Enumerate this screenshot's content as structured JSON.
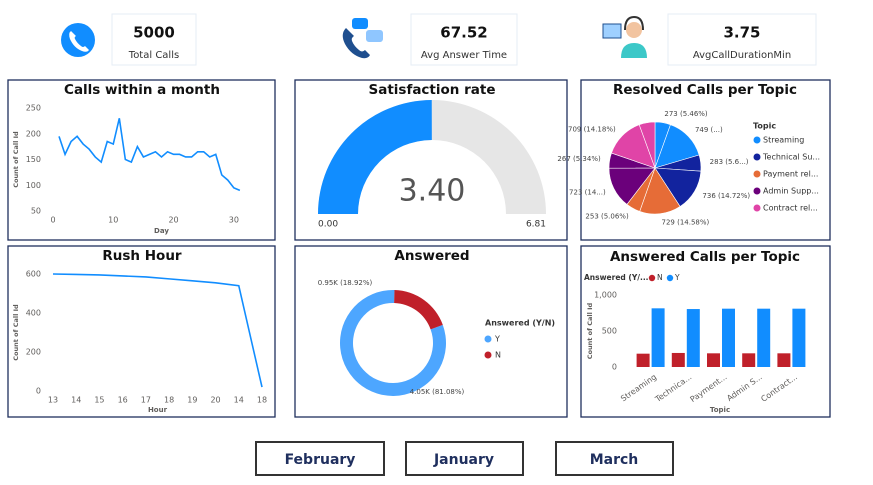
{
  "kpis": [
    {
      "value": 5000,
      "label": "Total Calls"
    },
    {
      "value": 67.52,
      "label": "Avg Answer Time"
    },
    {
      "value": 3.75,
      "label": "AvgCallDurationMin"
    }
  ],
  "chart_data": [
    {
      "type": "line",
      "title": "Calls within a month",
      "x": [
        1,
        2,
        3,
        4,
        5,
        6,
        7,
        8,
        9,
        10,
        11,
        12,
        13,
        14,
        15,
        16,
        17,
        18,
        19,
        20,
        21,
        22,
        23,
        24,
        25,
        26,
        27,
        28,
        29,
        30,
        31
      ],
      "values": [
        195,
        160,
        185,
        195,
        180,
        170,
        155,
        145,
        185,
        180,
        230,
        150,
        145,
        175,
        155,
        160,
        165,
        155,
        165,
        160,
        160,
        155,
        155,
        165,
        165,
        155,
        160,
        120,
        110,
        95,
        90
      ],
      "color": "#118dff",
      "xlim": [
        0,
        36
      ],
      "xticks": [
        0,
        10,
        20,
        30
      ],
      "ylim": [
        50,
        250
      ],
      "yticks": [
        50,
        100,
        150,
        200,
        250
      ],
      "xlabel": "Day",
      "ylabel": "Count of Call Id"
    },
    {
      "type": "gauge",
      "title": "Satisfaction rate",
      "values": [
        3.4
      ],
      "value_labels": [
        "3.40"
      ],
      "color": "#118dff",
      "ylim": [
        0,
        6.81
      ],
      "yticks": [
        {
          "value": 0,
          "label": "0.00"
        },
        {
          "value": 6.81,
          "label": "6.81"
        }
      ]
    },
    {
      "type": "pie",
      "title": "Resolved Calls per Topic",
      "legend_title": "Topic",
      "series": [
        {
          "name": "Streaming",
          "color": "#118dff",
          "values": [
            273,
            749
          ],
          "value_labels": [
            "273 (5.46%)",
            "749 (...)"
          ]
        },
        {
          "name": "Technical Su...",
          "color": "#12239e",
          "values": [
            283,
            736
          ],
          "value_labels": [
            "283 (5.6...)",
            "736 (14.72%)"
          ]
        },
        {
          "name": "Payment rel...",
          "color": "#e66c37",
          "values": [
            729,
            253
          ],
          "value_labels": [
            "729 (14.58%)",
            "253 (5.06%)"
          ]
        },
        {
          "name": "Admin Supp...",
          "color": "#6b007b",
          "values": [
            723,
            267
          ],
          "value_labels": [
            "723 (14...)",
            "267 (5.34%)"
          ]
        },
        {
          "name": "Contract rel...",
          "color": "#e044a7",
          "values": [
            709,
            278
          ],
          "value_labels": [
            "709 (14.18%)",
            null
          ]
        }
      ]
    },
    {
      "type": "line",
      "title": "Rush Hour",
      "categories": [
        "13",
        "14",
        "15",
        "16",
        "17",
        "18",
        "19",
        "20",
        "14",
        "18"
      ],
      "values": [
        600,
        598,
        595,
        590,
        585,
        575,
        565,
        555,
        540,
        20
      ],
      "color": "#118dff",
      "ylim": [
        0,
        600
      ],
      "yticks": [
        0,
        200,
        400,
        600
      ],
      "xlabel": "Hour",
      "ylabel": "Count of Call Id"
    },
    {
      "type": "donut",
      "title": "Answered",
      "legend_title": "Answered (Y/N)",
      "categories": [
        "Y",
        "N"
      ],
      "values": [
        4050,
        950
      ],
      "value_labels": [
        "4.05K (81.08%)",
        "0.95K (18.92%)"
      ],
      "colors": [
        "#4da6ff",
        "#c0202a"
      ]
    },
    {
      "type": "grouped_bar",
      "title": "Answered Calls per Topic",
      "legend_title": "Answered (Y/...",
      "categories": [
        "Streaming",
        "Technica...",
        "Payment...",
        "Admin S...",
        "Contract..."
      ],
      "series": [
        {
          "name": "N",
          "color": "#c0202a",
          "values": [
            185,
            195,
            190,
            190,
            190
          ]
        },
        {
          "name": "Y",
          "color": "#118dff",
          "values": [
            815,
            805,
            810,
            810,
            810
          ]
        }
      ],
      "ylim": [
        0,
        1000
      ],
      "yticks": [
        0,
        500,
        {
          "value": 1000,
          "label": "1,000"
        }
      ],
      "xlabel": "Topic",
      "ylabel": "Count of Call Id"
    }
  ],
  "buttons": [
    "February",
    "January",
    "March"
  ]
}
